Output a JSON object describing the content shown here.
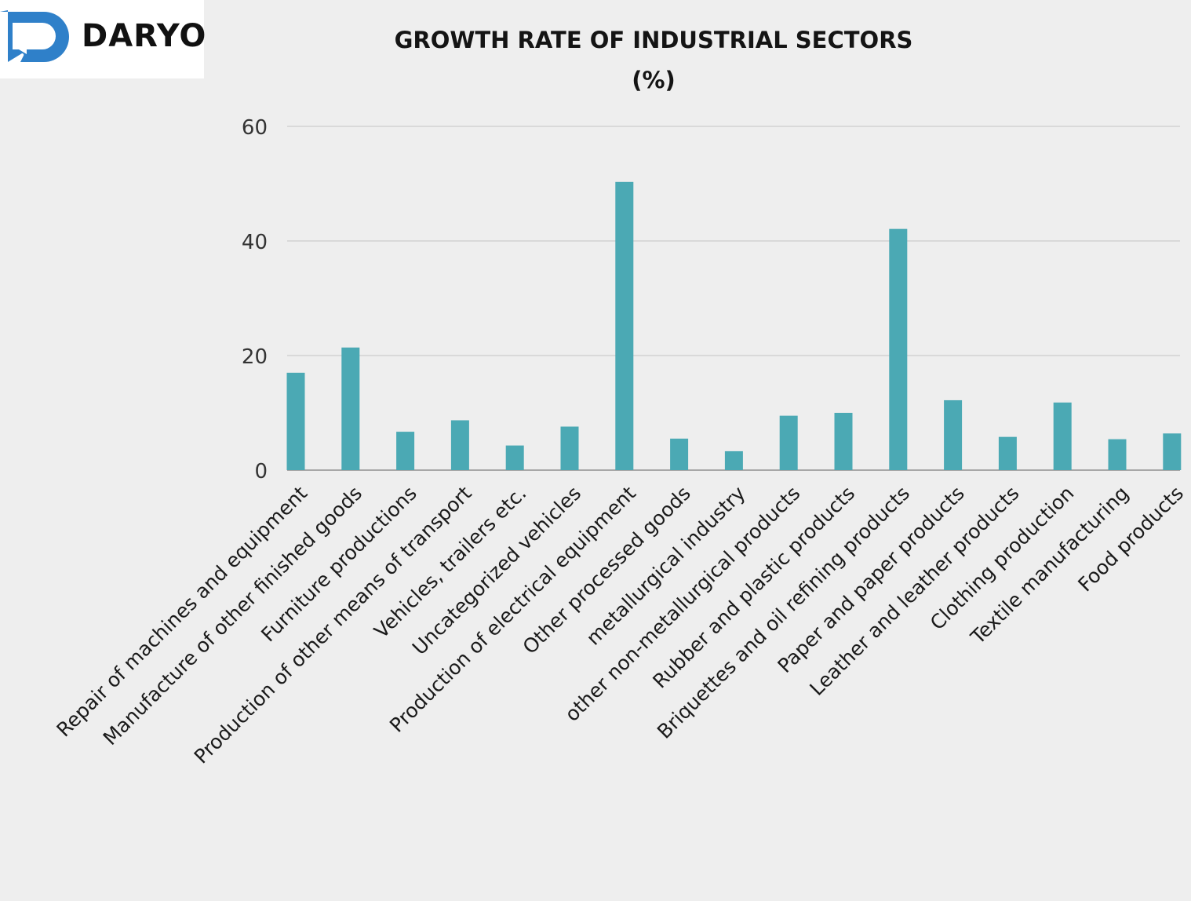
{
  "logo": {
    "text": "DARYO",
    "icon": "daryo-speech-bubble-icon",
    "color": "#2f80c9"
  },
  "chart_data": {
    "type": "bar",
    "title": "GROWTH RATE OF INDUSTRIAL SECTORS",
    "subtitle": "(%)",
    "xlabel": "",
    "ylabel": "",
    "ylim": [
      0,
      60
    ],
    "yticks": [
      0,
      20,
      40,
      60
    ],
    "grid": true,
    "bar_color": "#4ba9b4",
    "categories": [
      "Repair of machines and equipment",
      "Manufacture of other finished goods",
      "Furniture productions",
      "Production of other means of transport",
      "Vehicles, trailers etc.",
      "Uncategorized vehicles",
      "Production of electrical equipment",
      "Other processed goods",
      "metallurgical industry",
      "other non-metallurgical products",
      "Rubber and plastic products",
      "Briquettes and oil refining products",
      "Paper and paper products",
      "Leather and leather products",
      "Clothing production",
      "Textile manufacturing",
      "Food products"
    ],
    "values": [
      17.0,
      21.4,
      6.7,
      8.7,
      4.3,
      7.6,
      50.3,
      5.5,
      3.3,
      9.5,
      10.0,
      42.1,
      12.2,
      5.8,
      11.8,
      5.4,
      6.4
    ]
  }
}
